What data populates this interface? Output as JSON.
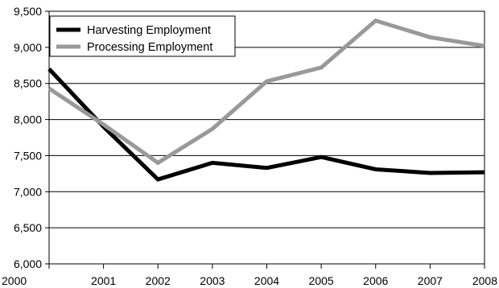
{
  "chart_data": {
    "type": "line",
    "title": "",
    "xlabel": "",
    "ylabel": "",
    "x": [
      "2000",
      "2001",
      "2002",
      "2003",
      "2004",
      "2005",
      "2006",
      "2007",
      "2008"
    ],
    "ylim": [
      6000,
      9500
    ],
    "yticks": [
      6000,
      6500,
      7000,
      7500,
      8000,
      8500,
      9000,
      9500
    ],
    "ytick_labels": [
      "6,000",
      "6,500",
      "7,000",
      "7,500",
      "8,000",
      "8,500",
      "9,000",
      "9,500"
    ],
    "grid": "horizontal",
    "legend_position": "top-left",
    "series": [
      {
        "name": "Harvesting Employment",
        "color": "#000000",
        "values": [
          8700,
          7900,
          7170,
          7400,
          7330,
          7480,
          7310,
          7260,
          7270
        ]
      },
      {
        "name": "Processing Employment",
        "color": "#999999",
        "values": [
          8430,
          7930,
          7400,
          7870,
          8530,
          8720,
          9370,
          9140,
          9020
        ]
      }
    ]
  }
}
